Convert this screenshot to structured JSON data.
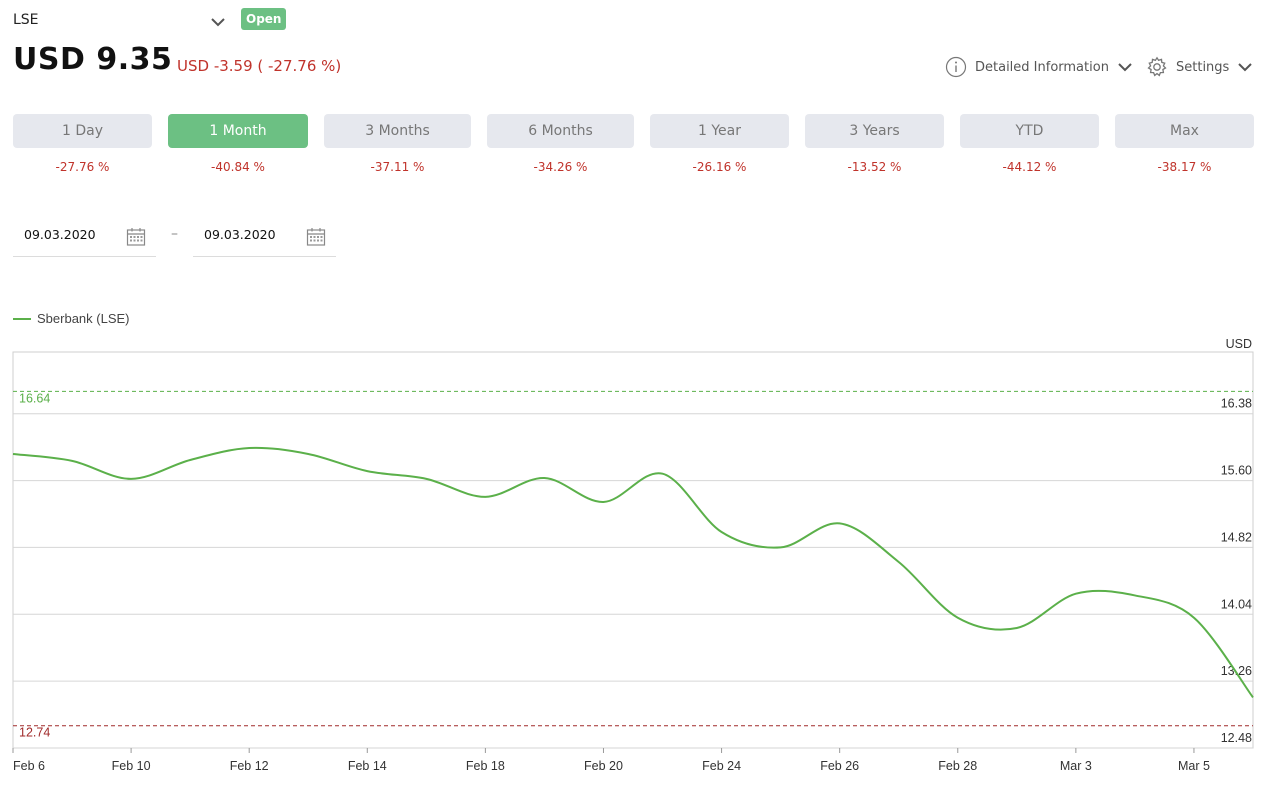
{
  "header": {
    "exchange": "LSE",
    "status": "Open",
    "price": "USD 9.35",
    "change": "USD -3.59 ( -27.76 %)",
    "detailed_info": "Detailed Information",
    "settings": "Settings"
  },
  "periods": [
    {
      "label": "1 Day",
      "change": "-27.76 %",
      "active": false
    },
    {
      "label": "1 Month",
      "change": "-40.84 %",
      "active": true
    },
    {
      "label": "3 Months",
      "change": "-37.11 %",
      "active": false
    },
    {
      "label": "6 Months",
      "change": "-34.26 %",
      "active": false
    },
    {
      "label": "1 Year",
      "change": "-26.16 %",
      "active": false
    },
    {
      "label": "3 Years",
      "change": "-13.52 %",
      "active": false
    },
    {
      "label": "YTD",
      "change": "-44.12 %",
      "active": false
    },
    {
      "label": "Max",
      "change": "-38.17 %",
      "active": false
    }
  ],
  "date_range": {
    "from": "09.03.2020",
    "separator": "–",
    "to": "09.03.2020"
  },
  "colors": {
    "accent": "#6cc083",
    "negative": "#c0332b",
    "series": "#5bb04a"
  },
  "chart_data": {
    "type": "line",
    "series": [
      {
        "name": "Sberbank (LSE)",
        "points": [
          [
            "Feb 6",
            15.91
          ],
          [
            "Feb 7",
            15.83
          ],
          [
            "Feb 10",
            15.62
          ],
          [
            "Feb 11",
            15.84
          ],
          [
            "Feb 12",
            15.98
          ],
          [
            "Feb 13",
            15.91
          ],
          [
            "Feb 14",
            15.71
          ],
          [
            "Feb 17",
            15.62
          ],
          [
            "Feb 18",
            15.41
          ],
          [
            "Feb 19",
            15.63
          ],
          [
            "Feb 20",
            15.35
          ],
          [
            "Feb 21",
            15.68
          ],
          [
            "Feb 24",
            15.0
          ],
          [
            "Feb 25",
            14.82
          ],
          [
            "Feb 26",
            15.1
          ],
          [
            "Feb 27",
            14.65
          ],
          [
            "Feb 28",
            14.0
          ],
          [
            "Mar 2",
            13.88
          ],
          [
            "Mar 3",
            14.28
          ],
          [
            "Mar 4",
            14.26
          ],
          [
            "Mar 5",
            14.0
          ],
          [
            "Mar 6",
            13.07
          ]
        ]
      }
    ],
    "xticks": [
      "Feb 6",
      "Feb 10",
      "Feb 12",
      "Feb 14",
      "Feb 18",
      "Feb 20",
      "Feb 24",
      "Feb 26",
      "Feb 28",
      "Mar 3",
      "Mar 5"
    ],
    "yticks": [
      12.48,
      13.26,
      14.04,
      14.82,
      15.6,
      16.38
    ],
    "ylabel": "USD",
    "ylim": [
      12.48,
      17.1
    ],
    "max_line": {
      "label": "16.64",
      "value": 16.64,
      "color": "#5bb04a"
    },
    "min_line": {
      "label": "12.74",
      "value": 12.74,
      "color": "#a02a2a"
    },
    "grid": true,
    "legend_position": "top-left"
  }
}
